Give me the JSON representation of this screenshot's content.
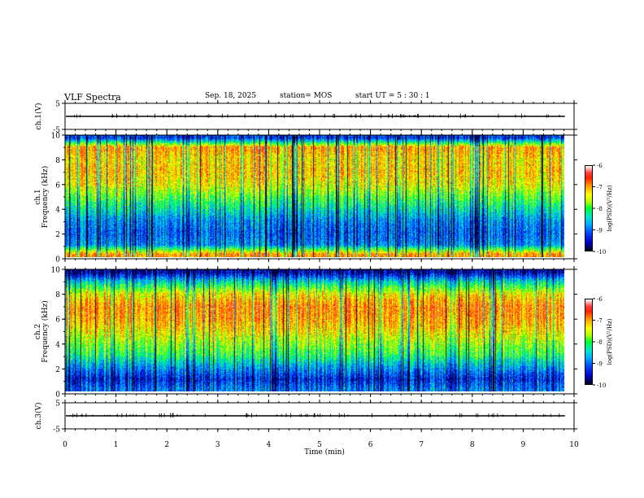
{
  "header": {
    "title": "VLF Spectra",
    "date": "Sep. 18, 2025",
    "station": "station= MOS",
    "start": "start  UT  =   5  : 30 : 1"
  },
  "colors": {
    "trace": "#000000",
    "axis": "#000000"
  },
  "chart_data": [
    {
      "type": "line",
      "name": "ch1-waveform",
      "ylabel": "ch.1(V)",
      "yticks": [
        5,
        -5
      ],
      "ylim": [
        -5,
        5
      ],
      "xlim": [
        0,
        10
      ],
      "baseline": 0
    },
    {
      "type": "heatmap",
      "name": "ch1-spectrogram",
      "ylabel_line1": "ch.1",
      "ylabel_line2": "Frequency  (kHz)",
      "yticks": [
        0,
        2,
        4,
        6,
        8,
        10
      ],
      "ylim": [
        0,
        10
      ],
      "xlim": [
        0,
        9.82
      ],
      "bands_khz": [
        0,
        0.5,
        1.5,
        2.5,
        3.5,
        4.5,
        5.5,
        6.5,
        7.5,
        8.5,
        9.5,
        10
      ],
      "band_levels": [
        -6.9,
        -8.8,
        -9.0,
        -8.8,
        -8.3,
        -7.8,
        -7.3,
        -7.1,
        -7.2,
        -6.9,
        -9.2
      ],
      "colorbar": {
        "label": "log(PSD)(V²/Hz)",
        "ticks": [
          -6,
          -7,
          -8,
          -9,
          -10
        ],
        "range": [
          -10,
          -6
        ]
      }
    },
    {
      "type": "heatmap",
      "name": "ch2-spectrogram",
      "ylabel_line1": "ch.2",
      "ylabel_line2": "Frequency  (kHz)",
      "yticks": [
        0,
        2,
        4,
        6,
        8,
        10
      ],
      "ylim": [
        0,
        10
      ],
      "xlim": [
        0,
        9.82
      ],
      "bands_khz": [
        0,
        0.5,
        1.5,
        2.5,
        3.5,
        4.5,
        5.5,
        6.5,
        7.5,
        8.5,
        9.5,
        10
      ],
      "band_levels": [
        -8.9,
        -9.3,
        -8.7,
        -8.0,
        -7.6,
        -7.2,
        -6.9,
        -6.8,
        -7.3,
        -8.4,
        -9.6
      ],
      "colorbar": {
        "label": "log(PSD)(V²/Hz)",
        "ticks": [
          -6,
          -7,
          -8,
          -9,
          -10
        ],
        "range": [
          -10,
          -6
        ]
      }
    },
    {
      "type": "line",
      "name": "ch3-waveform",
      "ylabel": "ch.3(V)",
      "yticks": [
        5,
        -5
      ],
      "ylim": [
        -5,
        5
      ],
      "xlim": [
        0,
        10
      ],
      "baseline": 0
    }
  ],
  "xaxis": {
    "label": "Time  (min)",
    "ticks": [
      0,
      1,
      2,
      3,
      4,
      5,
      6,
      7,
      8,
      9,
      10
    ],
    "range": [
      0,
      10
    ]
  }
}
